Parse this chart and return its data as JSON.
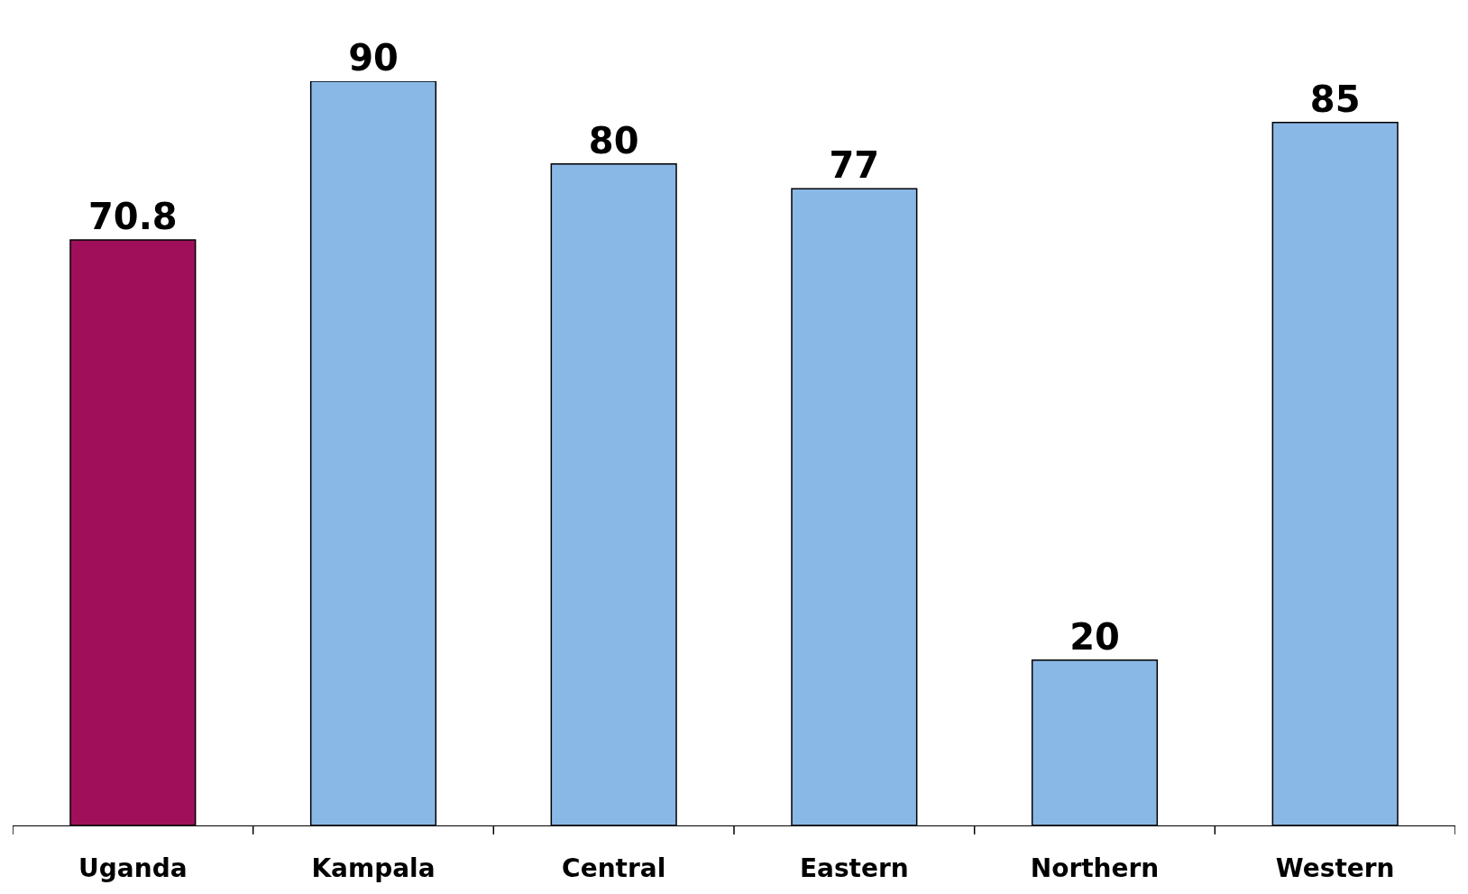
{
  "chart_data": {
    "type": "bar",
    "categories": [
      "Uganda",
      "Kampala",
      "Central",
      "Eastern",
      "Northern",
      "Western"
    ],
    "values": [
      70.8,
      90,
      80,
      77,
      20,
      85
    ],
    "colors": [
      "#a0105a",
      "#8ab8e6",
      "#8ab8e6",
      "#8ab8e6",
      "#8ab8e6",
      "#8ab8e6"
    ],
    "data_labels": true
  }
}
